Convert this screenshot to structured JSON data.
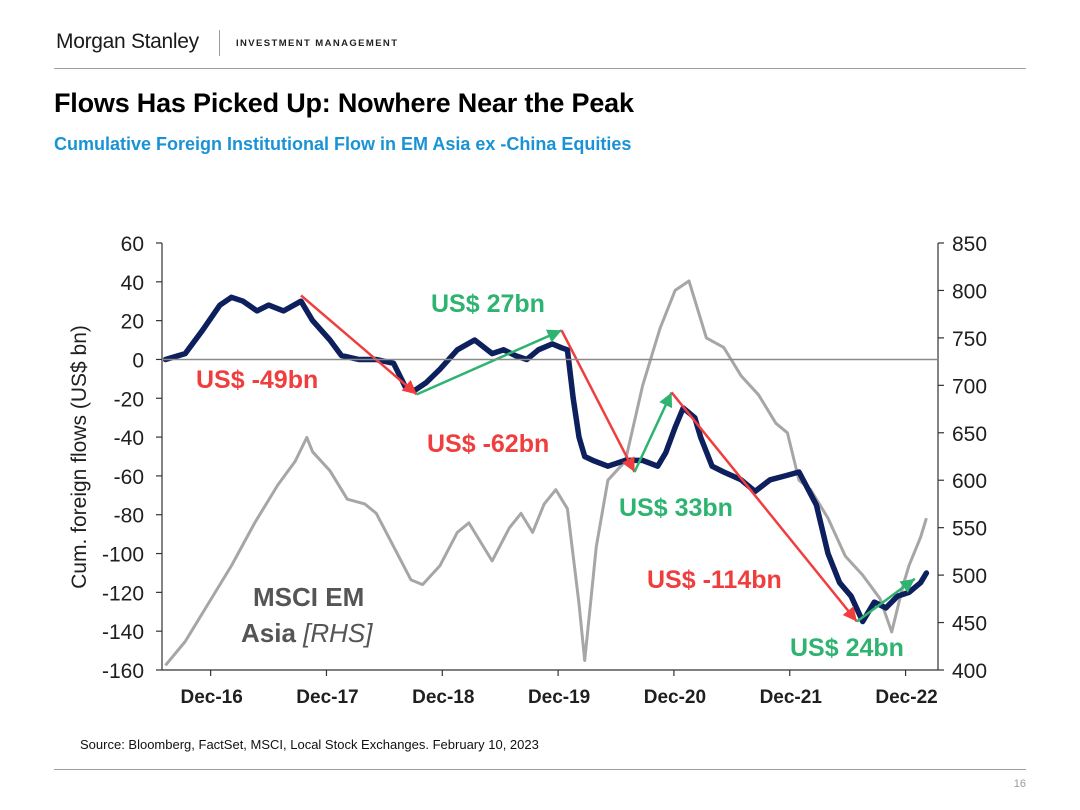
{
  "header": {
    "logo": "Morgan Stanley",
    "logo_sub": "INVESTMENT MANAGEMENT"
  },
  "title": "Flows Has Picked Up: Nowhere Near the Peak",
  "subtitle": "Cumulative Foreign Institutional Flow in EM Asia ex -China Equities",
  "source": "Source: Bloomberg, FactSet, MSCI, Local Stock Exchanges. February 10, 2023",
  "page_number": "16",
  "colors": {
    "flow_line": "#0d1f5c",
    "msci_line": "#a6a6a6",
    "negative": "#f03e3e",
    "positive": "#2eb370",
    "title_blue": "#1a93d6"
  },
  "chart_data": {
    "type": "line",
    "ylabel": "Cum. foreign flows (US$ bn)",
    "x_ticks": [
      "Dec-16",
      "Dec-17",
      "Dec-18",
      "Dec-19",
      "Dec-20",
      "Dec-21",
      "Dec-22"
    ],
    "x_tick_positions": [
      2016.92,
      2017.92,
      2018.92,
      2019.92,
      2020.92,
      2021.92,
      2022.92
    ],
    "xlim": [
      2016.5,
      2023.2
    ],
    "y_left": {
      "lim": [
        -160,
        60
      ],
      "ticks": [
        "60",
        "40",
        "20",
        "0",
        "-20",
        "-40",
        "-60",
        "-80",
        "-100",
        "-120",
        "-140",
        "-160"
      ],
      "tick_values": [
        60,
        40,
        20,
        0,
        -20,
        -40,
        -60,
        -80,
        -100,
        -120,
        -140,
        -160
      ]
    },
    "y_right": {
      "lim": [
        400,
        850
      ],
      "ticks": [
        "850",
        "800",
        "750",
        "700",
        "650",
        "600",
        "550",
        "500",
        "450",
        "400"
      ],
      "tick_values": [
        850,
        800,
        750,
        700,
        650,
        600,
        550,
        500,
        450,
        400
      ]
    },
    "reference_line": 0,
    "series": [
      {
        "axis": "left",
        "x": [
          2016.53,
          2016.7,
          2016.85,
          2017.0,
          2017.1,
          2017.2,
          2017.32,
          2017.42,
          2017.55,
          2017.7,
          2017.8,
          2017.95,
          2018.05,
          2018.2,
          2018.35,
          2018.5,
          2018.6,
          2018.68,
          2018.78,
          2018.9,
          2019.05,
          2019.2,
          2019.35,
          2019.45,
          2019.55,
          2019.65,
          2019.75,
          2019.87,
          2019.95,
          2020.0,
          2020.05,
          2020.1,
          2020.15,
          2020.22,
          2020.35,
          2020.5,
          2020.65,
          2020.78,
          2020.85,
          2020.93,
          2021.0,
          2021.1,
          2021.15,
          2021.25,
          2021.35,
          2021.5,
          2021.62,
          2021.75,
          2021.88,
          2022.0,
          2022.15,
          2022.25,
          2022.35,
          2022.45,
          2022.55,
          2022.65,
          2022.75,
          2022.85,
          2022.95,
          2023.05,
          2023.1
        ],
        "y": [
          0,
          3,
          15,
          28,
          32,
          30,
          25,
          28,
          25,
          30,
          20,
          10,
          2,
          0,
          0,
          -2,
          -14,
          -16,
          -12,
          -5,
          5,
          10,
          3,
          5,
          2,
          0,
          5,
          8,
          6,
          5,
          -20,
          -40,
          -50,
          -52,
          -55,
          -52,
          -52,
          -55,
          -48,
          -35,
          -25,
          -30,
          -40,
          -55,
          -58,
          -62,
          -68,
          -62,
          -60,
          -58,
          -75,
          -100,
          -115,
          -122,
          -135,
          -125,
          -128,
          -122,
          -120,
          -115,
          -110
        ]
      },
      {
        "axis": "right",
        "name": "MSCI EM Asia [RHS]",
        "x": [
          2016.53,
          2016.7,
          2016.9,
          2017.1,
          2017.3,
          2017.5,
          2017.65,
          2017.75,
          2017.8,
          2017.95,
          2018.1,
          2018.25,
          2018.35,
          2018.5,
          2018.65,
          2018.75,
          2018.9,
          2019.05,
          2019.15,
          2019.35,
          2019.5,
          2019.6,
          2019.7,
          2019.8,
          2019.9,
          2020.0,
          2020.1,
          2020.15,
          2020.2,
          2020.25,
          2020.35,
          2020.5,
          2020.65,
          2020.8,
          2020.93,
          2021.05,
          2021.1,
          2021.2,
          2021.35,
          2021.5,
          2021.65,
          2021.8,
          2021.9,
          2022.0,
          2022.1,
          2022.25,
          2022.4,
          2022.55,
          2022.7,
          2022.8,
          2022.9,
          2022.95,
          2023.05,
          2023.1
        ],
        "y": [
          405,
          430,
          470,
          510,
          555,
          595,
          620,
          645,
          630,
          610,
          580,
          575,
          565,
          530,
          495,
          490,
          510,
          545,
          555,
          515,
          550,
          565,
          545,
          575,
          590,
          570,
          470,
          410,
          470,
          530,
          600,
          620,
          700,
          760,
          800,
          810,
          790,
          750,
          740,
          710,
          690,
          660,
          650,
          600,
          590,
          560,
          520,
          500,
          475,
          440,
          490,
          510,
          540,
          560
        ]
      }
    ],
    "annotations": [
      {
        "text": "US$ -49bn",
        "kind": "negative",
        "from": [
          2017.7,
          33
        ],
        "to": [
          2018.7,
          -18
        ]
      },
      {
        "text": "US$ 27bn",
        "kind": "positive",
        "from": [
          2018.7,
          -18
        ],
        "to": [
          2019.95,
          15
        ]
      },
      {
        "text": "US$ -62bn",
        "kind": "negative",
        "from": [
          2019.95,
          15
        ],
        "to": [
          2020.58,
          -58
        ]
      },
      {
        "text": "US$ 33bn",
        "kind": "positive",
        "from": [
          2020.58,
          -58
        ],
        "to": [
          2020.9,
          -17
        ]
      },
      {
        "text": "US$ -114bn",
        "kind": "negative",
        "from": [
          2020.9,
          -17
        ],
        "to": [
          2022.5,
          -135
        ]
      },
      {
        "text": "US$ 24bn",
        "kind": "positive",
        "from": [
          2022.5,
          -135
        ],
        "to": [
          2023.0,
          -113
        ]
      }
    ],
    "series_label": "MSCI EM Asia [RHS]",
    "legend": "none",
    "grid": false
  }
}
